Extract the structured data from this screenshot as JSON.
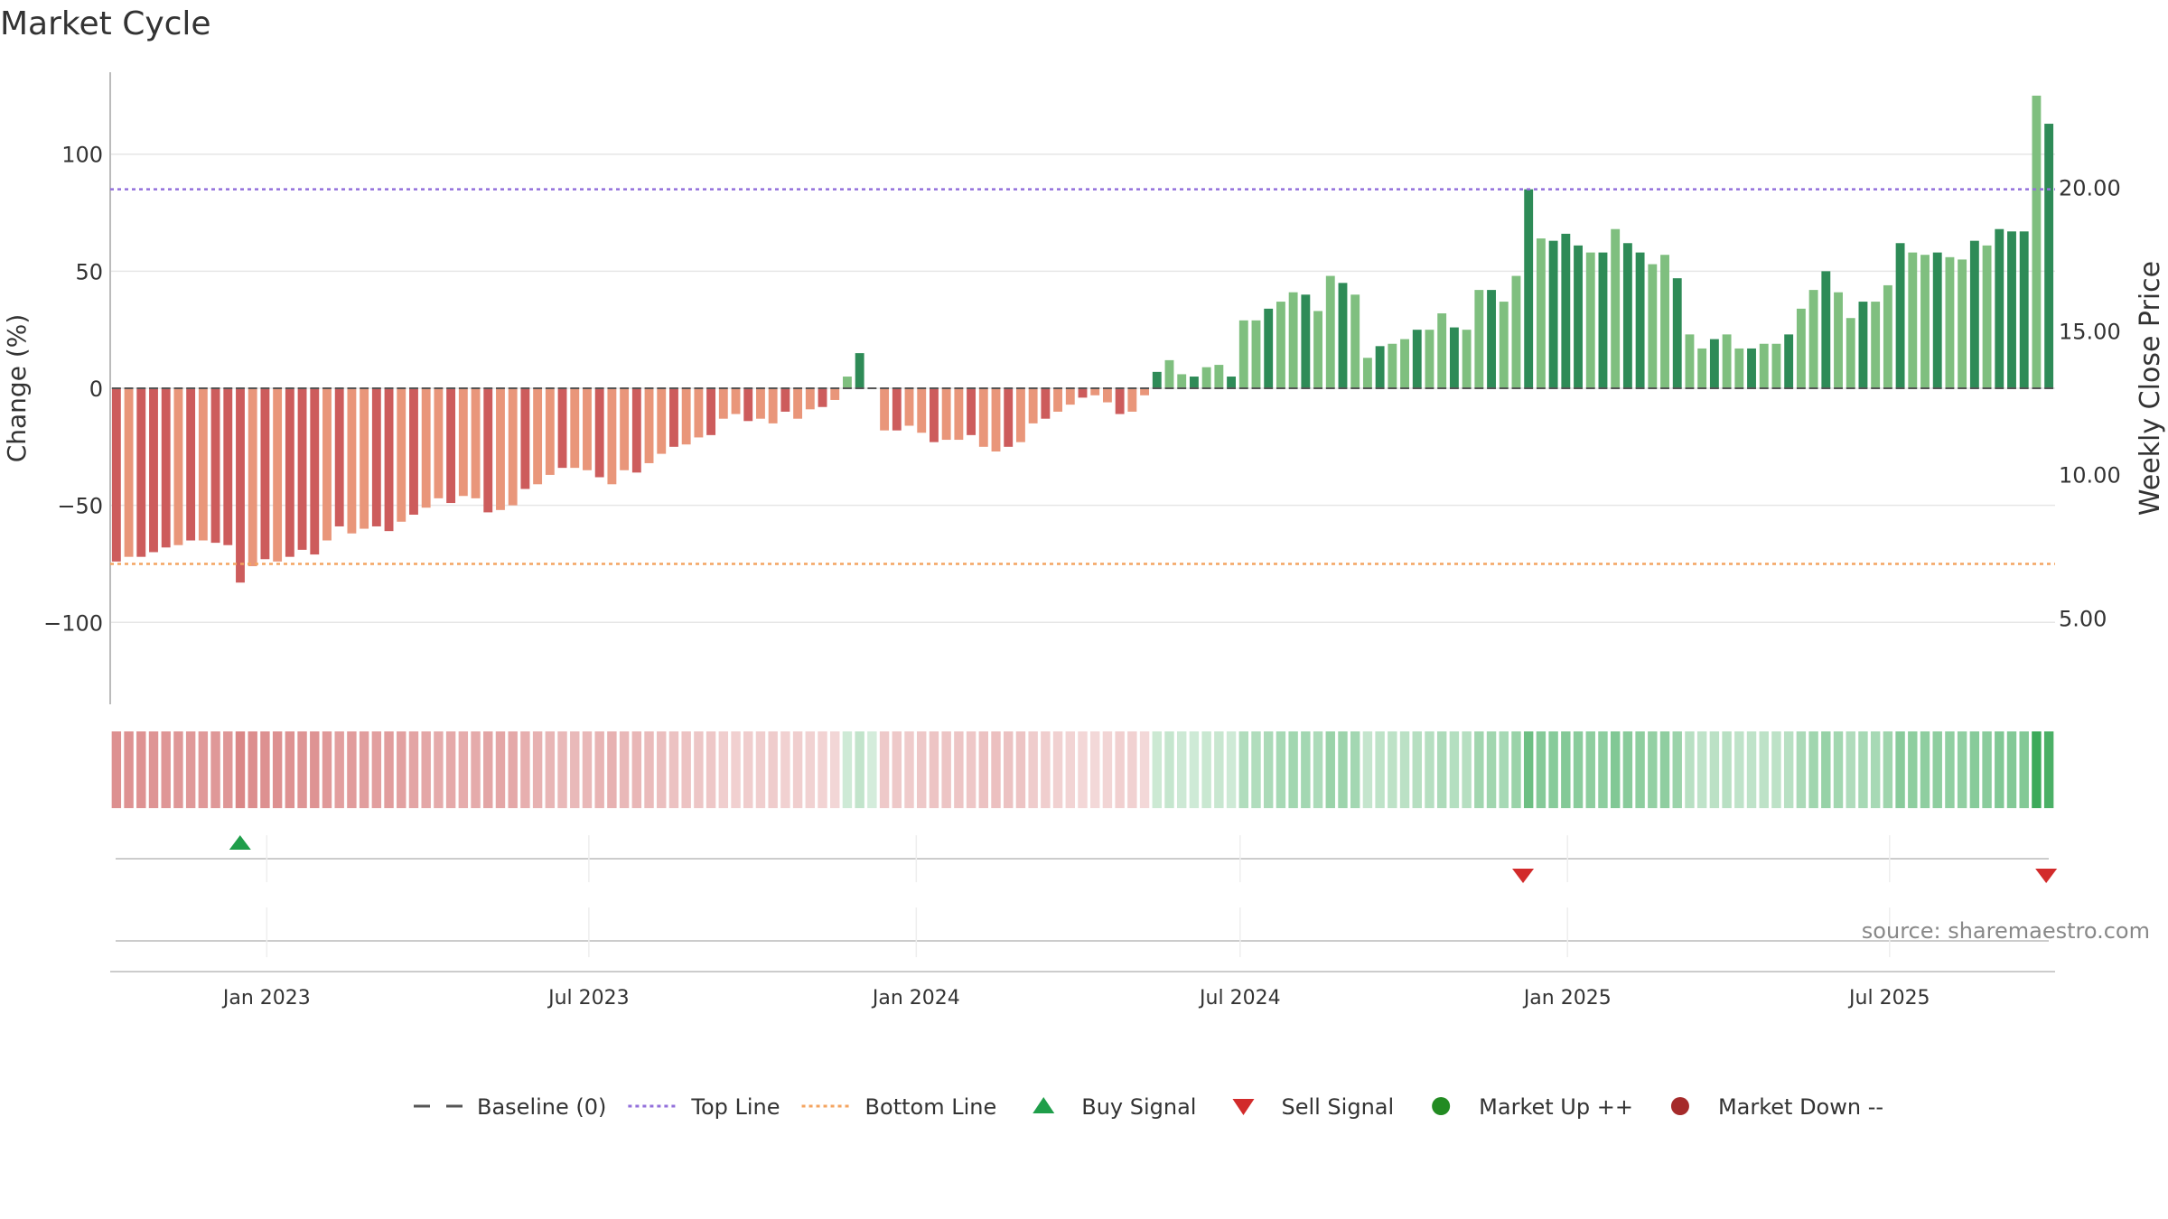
{
  "title": "Market Cycle",
  "source": "source: sharemaestro.com",
  "colors": {
    "neg_dark": "#cd5c5c",
    "neg_light": "#e9967a",
    "pos_dark": "#2e8b57",
    "pos_light": "#7fbf7f",
    "top_line": "#9370db",
    "bottom_line": "#f4a460",
    "baseline": "#555555",
    "buy": "#1f9e4a",
    "sell": "#d22b2b",
    "market_up": "#228b22",
    "market_down": "#a52a2a"
  },
  "chart_data": {
    "type": "bar",
    "title": "Market Cycle",
    "ylabel": "Change (%)",
    "y2label": "Weekly Close Price",
    "ylim": [
      -135,
      135
    ],
    "y2lim": [
      2.0,
      24.0
    ],
    "yticks": [
      100,
      50,
      0,
      -50,
      -100
    ],
    "yticklabels": [
      "100",
      "50",
      "0",
      "−50",
      "−100"
    ],
    "y2ticks": [
      20,
      15,
      10,
      5
    ],
    "y2ticklabels": [
      "20.00",
      "15.00",
      "10.00",
      "5.00"
    ],
    "x_start": "2022-10-08",
    "x_step_days": 7,
    "xlim": [
      "2022-10-05",
      "2025-10-02"
    ],
    "xticks": [
      "2023-01-01",
      "2023-07-01",
      "2024-01-01",
      "2024-07-01",
      "2025-01-01",
      "2025-07-01"
    ],
    "xticklabels": [
      "Jan 2023",
      "Jul 2023",
      "Jan 2024",
      "Jul 2024",
      "Jan 2025",
      "Jul 2025"
    ],
    "top_line": 85,
    "bottom_line": -75,
    "grid": true,
    "legend_position": "bottom-center",
    "values": [
      -74,
      -72,
      -72,
      -70,
      -68,
      -67,
      -65,
      -65,
      -66,
      -67,
      -83,
      -76,
      -73,
      -74,
      -72,
      -69,
      -71,
      -65,
      -59,
      -62,
      -60,
      -59,
      -61,
      -57,
      -54,
      -51,
      -47,
      -49,
      -46,
      -47,
      -53,
      -52,
      -50,
      -43,
      -41,
      -37,
      -34,
      -34,
      -35,
      -38,
      -41,
      -35,
      -36,
      -32,
      -28,
      -25,
      -24,
      -21,
      -20,
      -13,
      -11,
      -14,
      -13,
      -15,
      -10,
      -13,
      -9,
      -8,
      -5,
      5,
      15,
      0,
      -18,
      -18,
      -16,
      -19,
      -23,
      -22,
      -22,
      -20,
      -25,
      -27,
      -25,
      -23,
      -15,
      -13,
      -10,
      -7,
      -4,
      -3,
      -6,
      -11,
      -10,
      -3,
      7,
      12,
      6,
      5,
      9,
      10,
      5,
      29,
      29,
      34,
      37,
      41,
      40,
      33,
      48,
      45,
      40,
      13,
      18,
      19,
      21,
      25,
      25,
      32,
      26,
      25,
      42,
      42,
      37,
      48,
      85,
      64,
      63,
      66,
      61,
      58,
      58,
      68,
      62,
      58,
      53,
      57,
      47,
      23,
      17,
      21,
      23,
      17,
      17,
      19,
      19,
      23,
      34,
      42,
      50,
      41,
      30,
      37,
      37,
      44,
      62,
      58,
      57,
      58,
      56,
      55,
      63,
      61,
      68,
      67,
      67,
      125,
      113
    ],
    "signals": [
      {
        "type": "buy",
        "date": "2022-12-17"
      },
      {
        "type": "sell",
        "date": "2024-12-07"
      },
      {
        "type": "sell",
        "date": "2025-09-27"
      }
    ],
    "legend": [
      {
        "label": "Baseline (0)",
        "marker": "dash",
        "color": "#555555"
      },
      {
        "label": "Top Line",
        "marker": "dot-line",
        "color": "#9370db"
      },
      {
        "label": "Bottom Line",
        "marker": "dot-line",
        "color": "#f4a460"
      },
      {
        "label": "Buy Signal",
        "marker": "triangle-up",
        "color": "#1f9e4a"
      },
      {
        "label": "Sell Signal",
        "marker": "triangle-down",
        "color": "#d22b2b"
      },
      {
        "label": "Market Up ++",
        "marker": "circle",
        "color": "#228b22"
      },
      {
        "label": "Market Down --",
        "marker": "circle",
        "color": "#a52a2a"
      }
    ]
  }
}
